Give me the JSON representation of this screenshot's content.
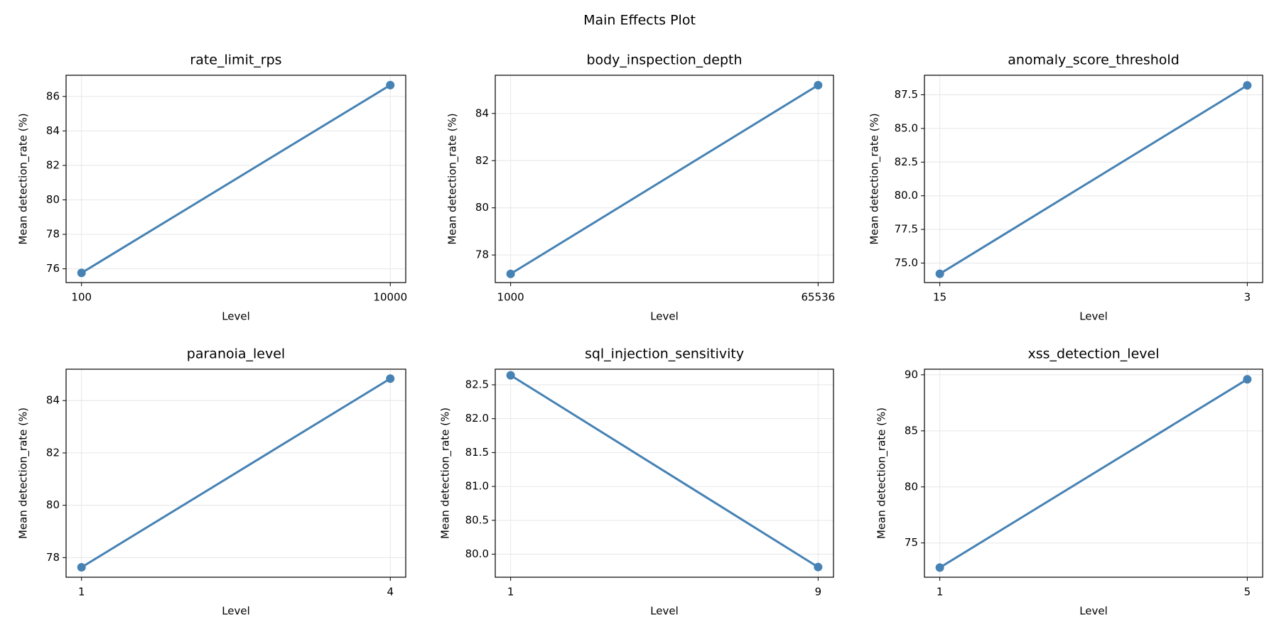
{
  "title": "Main Effects Plot",
  "chart_data": [
    {
      "type": "line",
      "title": "rate_limit_rps",
      "x_label": "Level",
      "y_label": "Mean detection_rate (%)",
      "categories": [
        "100",
        "10000"
      ],
      "series": [
        {
          "color": "#4682b4",
          "values": [
            75.76,
            86.66
          ]
        }
      ],
      "ylim": [
        75.2,
        87.23
      ],
      "yticks": [
        76,
        78,
        80,
        82,
        84,
        86
      ],
      "grid": true
    },
    {
      "type": "line",
      "title": "body_inspection_depth",
      "x_label": "Level",
      "y_label": "Mean detection_rate (%)",
      "categories": [
        "1000",
        "65536"
      ],
      "series": [
        {
          "color": "#4682b4",
          "values": [
            77.2,
            85.2
          ]
        }
      ],
      "ylim": [
        76.83,
        85.62
      ],
      "yticks": [
        78,
        80,
        82,
        84
      ],
      "grid": true
    },
    {
      "type": "line",
      "title": "anomaly_score_threshold",
      "x_label": "Level",
      "y_label": "Mean detection_rate (%)",
      "categories": [
        "15",
        "3"
      ],
      "series": [
        {
          "color": "#4682b4",
          "values": [
            74.2,
            88.2
          ]
        }
      ],
      "ylim": [
        73.55,
        88.95
      ],
      "yticks": [
        {
          "value": 75,
          "label": "75.0"
        },
        77.5,
        {
          "value": 80,
          "label": "80.0"
        },
        82.5,
        {
          "value": 85,
          "label": "85.0"
        },
        87.5
      ],
      "grid": true
    },
    {
      "type": "line",
      "title": "paranoia_level",
      "x_label": "Level",
      "y_label": "Mean detection_rate (%)",
      "categories": [
        "1",
        "4"
      ],
      "series": [
        {
          "color": "#4682b4",
          "values": [
            77.63,
            84.84
          ]
        }
      ],
      "ylim": [
        77.25,
        85.2
      ],
      "yticks": [
        78,
        80,
        82,
        84
      ],
      "grid": true
    },
    {
      "type": "line",
      "title": "sql_injection_sensitivity",
      "x_label": "Level",
      "y_label": "Mean detection_rate (%)",
      "categories": [
        "1",
        "9"
      ],
      "series": [
        {
          "color": "#4682b4",
          "values": [
            82.64,
            79.81
          ]
        }
      ],
      "ylim": [
        79.66,
        82.73
      ],
      "yticks": [
        {
          "value": 80,
          "label": "80.0"
        },
        80.5,
        {
          "value": 81,
          "label": "81.0"
        },
        81.5,
        {
          "value": 82,
          "label": "82.0"
        },
        82.5
      ],
      "grid": true
    },
    {
      "type": "line",
      "title": "xss_detection_level",
      "x_label": "Level",
      "y_label": "Mean detection_rate (%)",
      "categories": [
        "1",
        "5"
      ],
      "series": [
        {
          "color": "#4682b4",
          "values": [
            72.8,
            89.6
          ]
        }
      ],
      "ylim": [
        71.94,
        90.5
      ],
      "yticks": [
        75,
        80,
        85,
        90
      ],
      "grid": true
    }
  ]
}
